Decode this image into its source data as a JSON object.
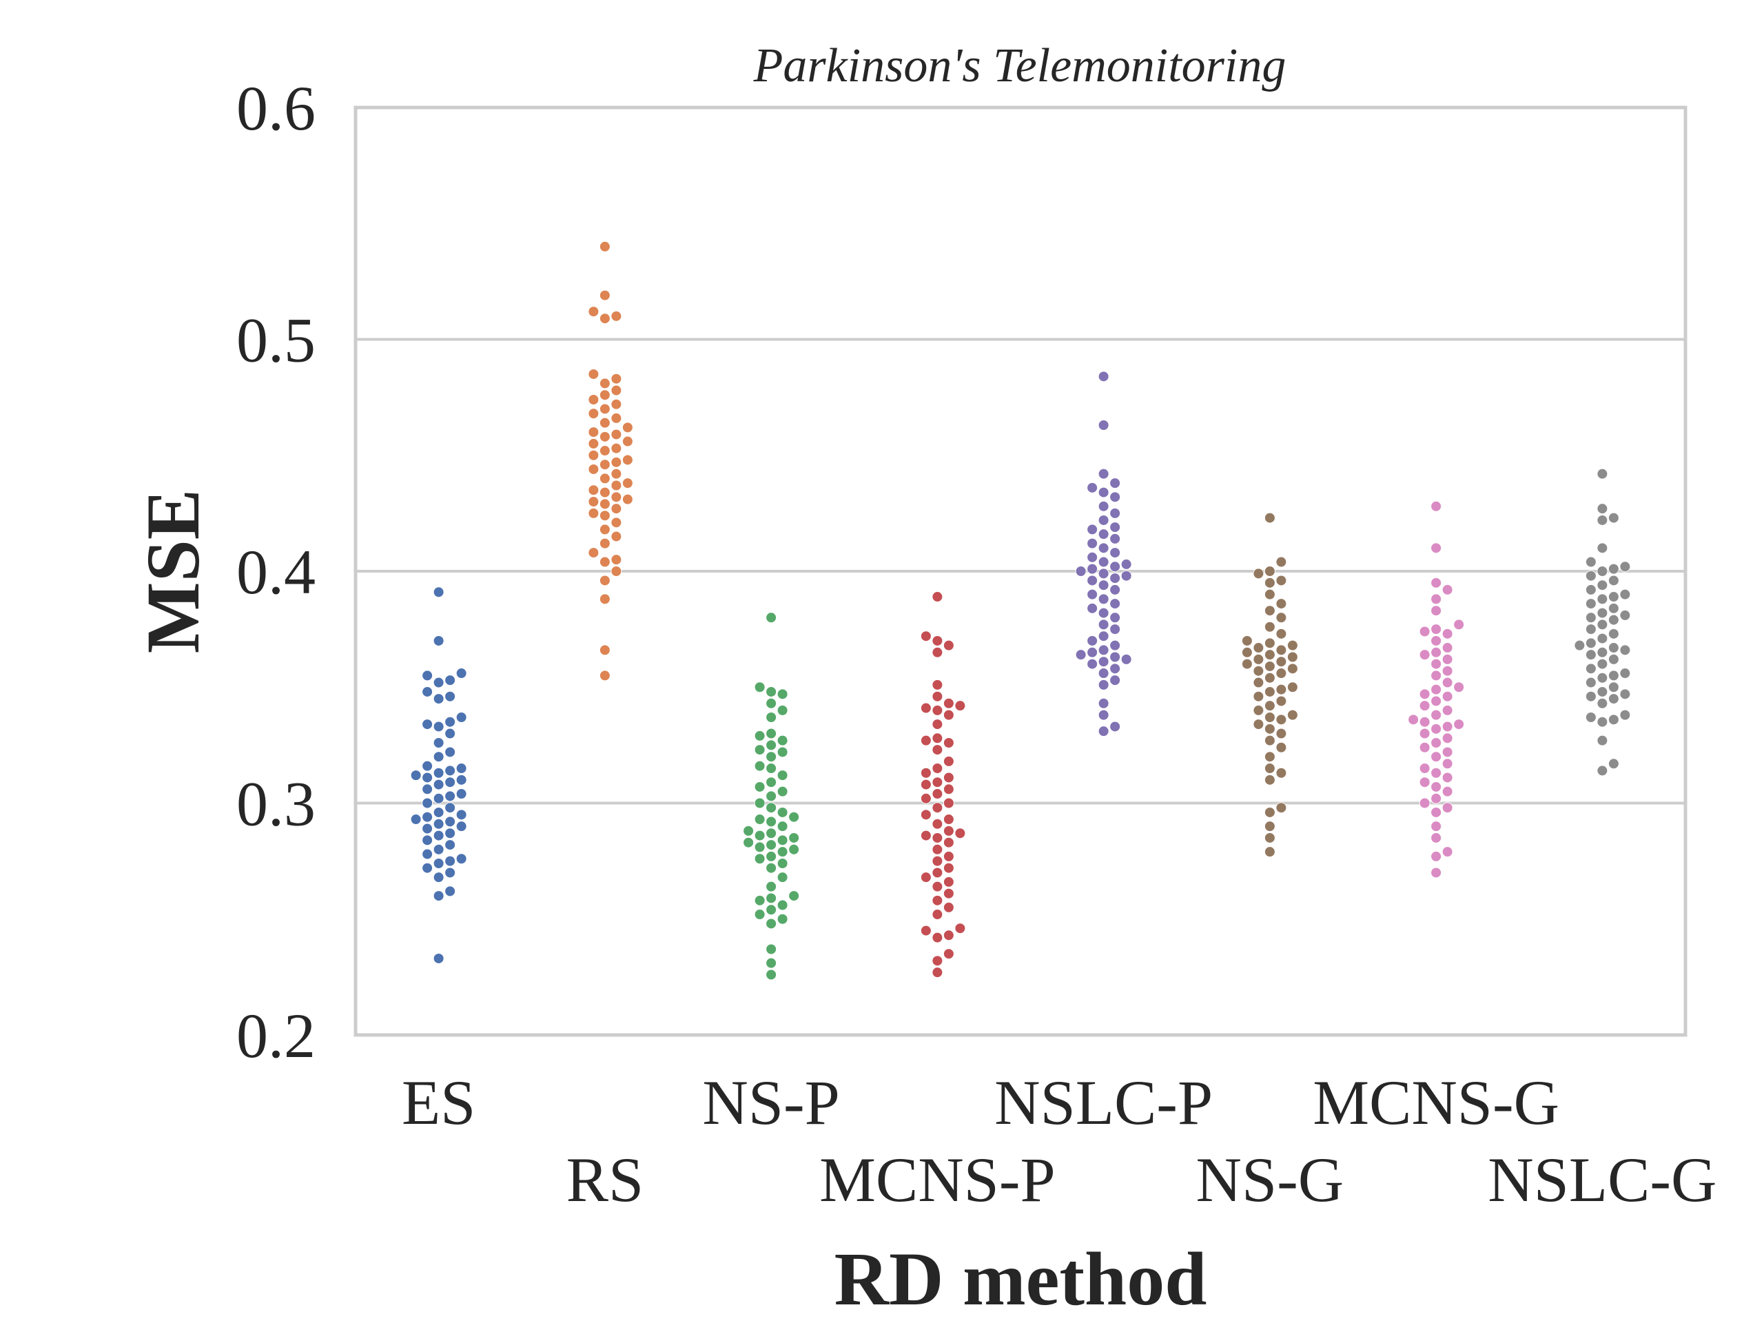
{
  "chart_data": {
    "type": "scatter",
    "subtype": "swarm",
    "title": "Parkinson's Telemonitoring",
    "xlabel": "RD method",
    "ylabel": "MSE",
    "ylim": [
      0.2,
      0.6
    ],
    "yticks": [
      "0.2",
      "0.3",
      "0.4",
      "0.5",
      "0.6"
    ],
    "grid": "horizontal",
    "categories": [
      "ES",
      "RS",
      "NS-P",
      "MCNS-P",
      "NSLC-P",
      "NS-G",
      "MCNS-G",
      "NSLC-G"
    ],
    "series": [
      {
        "category": "ES",
        "color": "#4C72B0",
        "values": [
          0.391,
          0.37,
          0.356,
          0.355,
          0.353,
          0.352,
          0.348,
          0.346,
          0.345,
          0.337,
          0.335,
          0.334,
          0.333,
          0.33,
          0.326,
          0.322,
          0.32,
          0.316,
          0.315,
          0.314,
          0.313,
          0.312,
          0.311,
          0.31,
          0.309,
          0.308,
          0.306,
          0.304,
          0.303,
          0.302,
          0.3,
          0.298,
          0.296,
          0.295,
          0.294,
          0.293,
          0.292,
          0.291,
          0.29,
          0.289,
          0.287,
          0.286,
          0.284,
          0.282,
          0.28,
          0.278,
          0.276,
          0.275,
          0.274,
          0.272,
          0.27,
          0.268,
          0.262,
          0.26,
          0.233
        ]
      },
      {
        "category": "RS",
        "color": "#DD8452",
        "values": [
          0.54,
          0.519,
          0.512,
          0.51,
          0.509,
          0.485,
          0.483,
          0.481,
          0.478,
          0.476,
          0.474,
          0.472,
          0.47,
          0.468,
          0.466,
          0.464,
          0.462,
          0.46,
          0.459,
          0.458,
          0.456,
          0.455,
          0.453,
          0.452,
          0.45,
          0.448,
          0.447,
          0.446,
          0.444,
          0.442,
          0.44,
          0.438,
          0.437,
          0.435,
          0.434,
          0.432,
          0.431,
          0.43,
          0.429,
          0.427,
          0.425,
          0.424,
          0.421,
          0.418,
          0.415,
          0.412,
          0.408,
          0.405,
          0.404,
          0.4,
          0.396,
          0.388,
          0.366,
          0.355
        ]
      },
      {
        "category": "NS-P",
        "color": "#55A868",
        "values": [
          0.38,
          0.35,
          0.348,
          0.347,
          0.343,
          0.34,
          0.337,
          0.33,
          0.329,
          0.327,
          0.325,
          0.323,
          0.322,
          0.32,
          0.316,
          0.315,
          0.312,
          0.309,
          0.307,
          0.305,
          0.303,
          0.3,
          0.298,
          0.296,
          0.294,
          0.293,
          0.292,
          0.29,
          0.288,
          0.287,
          0.286,
          0.285,
          0.284,
          0.283,
          0.282,
          0.281,
          0.28,
          0.279,
          0.277,
          0.276,
          0.274,
          0.272,
          0.268,
          0.264,
          0.26,
          0.259,
          0.258,
          0.256,
          0.254,
          0.252,
          0.25,
          0.248,
          0.237,
          0.231,
          0.226
        ]
      },
      {
        "category": "MCNS-P",
        "color": "#C44E52",
        "values": [
          0.389,
          0.372,
          0.37,
          0.368,
          0.365,
          0.351,
          0.346,
          0.343,
          0.342,
          0.341,
          0.34,
          0.338,
          0.334,
          0.328,
          0.327,
          0.326,
          0.323,
          0.318,
          0.315,
          0.313,
          0.311,
          0.309,
          0.308,
          0.306,
          0.304,
          0.302,
          0.3,
          0.298,
          0.295,
          0.293,
          0.291,
          0.288,
          0.287,
          0.286,
          0.285,
          0.283,
          0.28,
          0.277,
          0.275,
          0.272,
          0.27,
          0.268,
          0.266,
          0.264,
          0.261,
          0.258,
          0.255,
          0.252,
          0.246,
          0.245,
          0.243,
          0.242,
          0.235,
          0.232,
          0.227
        ]
      },
      {
        "category": "NSLC-P",
        "color": "#8172B3",
        "values": [
          0.484,
          0.463,
          0.442,
          0.438,
          0.436,
          0.434,
          0.432,
          0.428,
          0.425,
          0.422,
          0.419,
          0.418,
          0.416,
          0.414,
          0.412,
          0.41,
          0.408,
          0.406,
          0.404,
          0.403,
          0.402,
          0.401,
          0.4,
          0.399,
          0.398,
          0.397,
          0.396,
          0.394,
          0.392,
          0.39,
          0.388,
          0.386,
          0.384,
          0.382,
          0.38,
          0.377,
          0.375,
          0.372,
          0.37,
          0.368,
          0.366,
          0.365,
          0.364,
          0.363,
          0.362,
          0.361,
          0.36,
          0.358,
          0.356,
          0.353,
          0.351,
          0.343,
          0.338,
          0.333,
          0.331
        ]
      },
      {
        "category": "NS-G",
        "color": "#937860",
        "values": [
          0.423,
          0.404,
          0.4,
          0.399,
          0.396,
          0.395,
          0.39,
          0.386,
          0.383,
          0.38,
          0.376,
          0.373,
          0.37,
          0.369,
          0.368,
          0.367,
          0.366,
          0.365,
          0.364,
          0.363,
          0.362,
          0.361,
          0.36,
          0.359,
          0.358,
          0.357,
          0.356,
          0.354,
          0.352,
          0.35,
          0.349,
          0.348,
          0.346,
          0.344,
          0.342,
          0.34,
          0.338,
          0.337,
          0.336,
          0.334,
          0.332,
          0.33,
          0.327,
          0.324,
          0.32,
          0.315,
          0.313,
          0.31,
          0.298,
          0.296,
          0.29,
          0.285,
          0.279
        ]
      },
      {
        "category": "MCNS-G",
        "color": "#DA8BC3",
        "values": [
          0.428,
          0.41,
          0.395,
          0.392,
          0.388,
          0.383,
          0.377,
          0.375,
          0.374,
          0.373,
          0.37,
          0.367,
          0.365,
          0.364,
          0.362,
          0.36,
          0.357,
          0.355,
          0.352,
          0.35,
          0.349,
          0.347,
          0.346,
          0.344,
          0.342,
          0.34,
          0.338,
          0.336,
          0.335,
          0.334,
          0.333,
          0.332,
          0.33,
          0.328,
          0.326,
          0.324,
          0.322,
          0.32,
          0.317,
          0.315,
          0.313,
          0.311,
          0.309,
          0.307,
          0.305,
          0.302,
          0.3,
          0.298,
          0.296,
          0.29,
          0.285,
          0.279,
          0.277,
          0.27
        ]
      },
      {
        "category": "NSLC-G",
        "color": "#8C8C8C",
        "values": [
          0.442,
          0.427,
          0.423,
          0.422,
          0.41,
          0.404,
          0.402,
          0.401,
          0.4,
          0.398,
          0.396,
          0.394,
          0.392,
          0.39,
          0.389,
          0.388,
          0.386,
          0.384,
          0.382,
          0.381,
          0.38,
          0.379,
          0.377,
          0.375,
          0.373,
          0.371,
          0.369,
          0.368,
          0.367,
          0.366,
          0.365,
          0.364,
          0.362,
          0.36,
          0.358,
          0.356,
          0.355,
          0.354,
          0.352,
          0.35,
          0.348,
          0.347,
          0.346,
          0.345,
          0.343,
          0.338,
          0.337,
          0.336,
          0.335,
          0.327,
          0.317,
          0.314
        ]
      }
    ]
  }
}
